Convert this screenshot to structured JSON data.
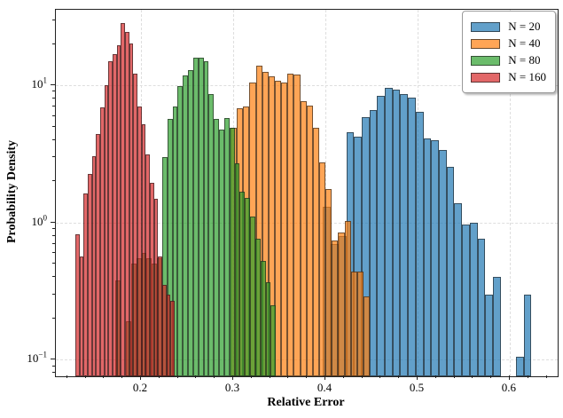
{
  "chart_data": {
    "type": "histogram",
    "title": "",
    "xlabel": "Relative Error",
    "ylabel": "Probability Density",
    "xscale": "linear",
    "yscale": "log",
    "xlim": [
      0.1077,
      0.652
    ],
    "ylim": [
      0.0759,
      35.7
    ],
    "grid": "dashed, on major ticks, both axes",
    "x_ticks": [
      {
        "value": 0.2,
        "label": "0.2"
      },
      {
        "value": 0.3,
        "label": "0.3"
      },
      {
        "value": 0.4,
        "label": "0.4"
      },
      {
        "value": 0.5,
        "label": "0.5"
      },
      {
        "value": 0.6,
        "label": "0.6"
      }
    ],
    "x_minor_tick_step": 0.02,
    "y_ticks": [
      {
        "value": 0.1,
        "base": "10",
        "exp": "−1"
      },
      {
        "value": 1,
        "base": "10",
        "exp": "0"
      },
      {
        "value": 10,
        "base": "10",
        "exp": "1"
      }
    ],
    "legend": {
      "position": "upper right",
      "items": [
        {
          "label": "N = 20",
          "color": "#1f77b4"
        },
        {
          "label": "N = 40",
          "color": "#ff7f0e"
        },
        {
          "label": "N = 80",
          "color": "#2ca02c"
        },
        {
          "label": "N = 160",
          "color": "#d62728"
        }
      ]
    },
    "bar_alpha": 0.7,
    "series": [
      {
        "name": "N = 20",
        "color": "#1f77b4",
        "alpha": 0.7,
        "bin_start": 0.3976,
        "bin_width": 0.00837,
        "heights": [
          1.3,
          0.7,
          0.8,
          4.6,
          4.25,
          5.9,
          6.6,
          8.4,
          9.6,
          9.3,
          8.7,
          8.2,
          6.45,
          4.1,
          4.0,
          3.4,
          2.55,
          1.39,
          0.97,
          1.0,
          0.765,
          0.3,
          0.4,
          0,
          0,
          0.105,
          0.3
        ]
      },
      {
        "name": "N = 40",
        "color": "#ff7f0e",
        "alpha": 0.7,
        "bin_start": 0.2971,
        "bin_width": 0.00687,
        "heights": [
          4.9,
          6.8,
          7.0,
          10.5,
          13.9,
          12.6,
          11.7,
          10.9,
          10.5,
          12.3,
          12.0,
          7.7,
          7.15,
          4.93,
          2.76,
          1.76,
          0.74,
          0.85,
          1.03,
          0.44,
          0.44,
          0.29
        ]
      },
      {
        "name": "N = 80",
        "color": "#2ca02c",
        "alpha": 0.7,
        "bin_start": 0.1726,
        "bin_width": 0.00561,
        "heights": [
          0.38,
          0,
          0.19,
          0.5,
          0.55,
          0.6,
          0.55,
          0.5,
          0.55,
          3.0,
          5.7,
          7.0,
          9.9,
          11.9,
          13.0,
          16.0,
          16.0,
          15.1,
          8.7,
          5.7,
          4.8,
          5.8,
          4.93,
          2.7,
          1.69,
          1.52,
          1.11,
          0.76,
          0.53,
          0.37,
          0.25
        ]
      },
      {
        "name": "N = 160",
        "color": "#d62728",
        "alpha": 0.7,
        "bin_start": 0.1288,
        "bin_width": 0.00449,
        "heights": [
          0.82,
          0.57,
          1.64,
          2.27,
          3.06,
          4.44,
          6.95,
          10.1,
          15.0,
          17.0,
          19.7,
          28.6,
          24.6,
          20.3,
          12.2,
          7.0,
          5.2,
          3.15,
          1.95,
          1.5,
          0.57,
          0.35,
          0.3,
          0.27
        ]
      }
    ]
  }
}
